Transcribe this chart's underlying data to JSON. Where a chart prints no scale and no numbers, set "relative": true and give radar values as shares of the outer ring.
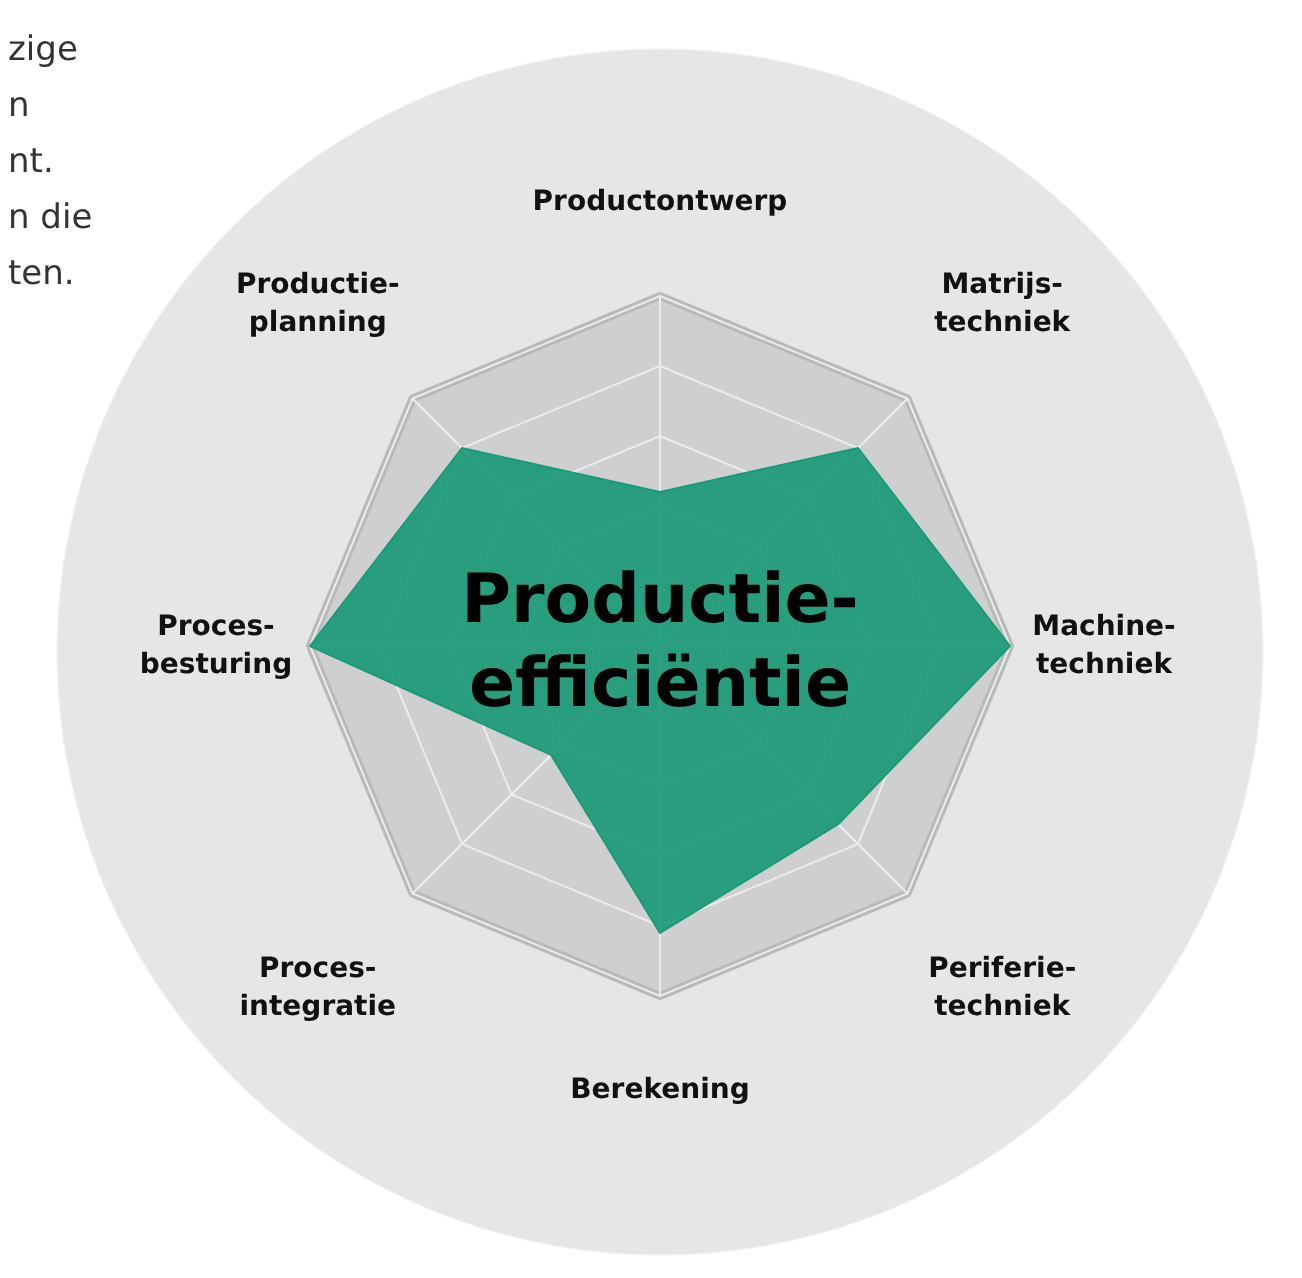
{
  "chart_data": {
    "type": "radar",
    "title": "Productie-\nefficiëntie",
    "relative": true,
    "grid": true,
    "categories": [
      "Productontwerp",
      "Matrijs-\ntechniek",
      "Machine-\ntechniek",
      "Periferie-\ntechniek",
      "Berekening",
      "Proces-\nintegratie",
      "Proces-\nbesturing",
      "Productie-\nplanning"
    ],
    "series": [
      {
        "color": "#1a9a78",
        "values": [
          0.44,
          0.8,
          1,
          0.72,
          0.82,
          0.44,
          1,
          0.8
        ]
      }
    ],
    "annotations": [
      "zige",
      "n",
      "nt.",
      "n die",
      "ten."
    ]
  }
}
